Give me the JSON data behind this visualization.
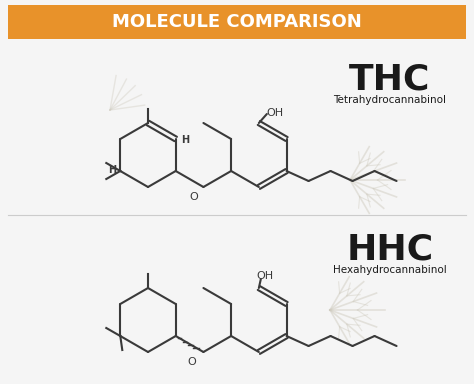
{
  "title": "MOLECULE COMPARISON",
  "title_bg": "#E8922A",
  "title_color": "#FFFFFF",
  "bg_color": "#F5F5F5",
  "molecule_line_color": "#3a3a3a",
  "thc_label": "THC",
  "thc_sublabel": "Tetrahydrocannabinol",
  "hhc_label": "HHC",
  "hhc_sublabel": "Hexahydrocannabinol",
  "label_color": "#1a1a1a",
  "leaf_color": "#d0ccc0"
}
